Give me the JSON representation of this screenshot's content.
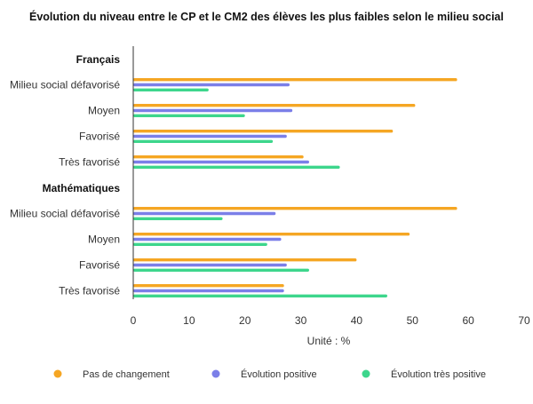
{
  "chart_data": {
    "type": "bar",
    "orientation": "horizontal",
    "title": "Évolution du niveau entre le CP et le CM2 des élèves les plus faibles selon le milieu social",
    "xlabel": "Unité : %",
    "xlim": [
      0,
      70
    ],
    "xticks": [
      "0",
      "10",
      "20",
      "30",
      "40",
      "50",
      "60",
      "70"
    ],
    "grid": false,
    "legend_position": "bottom",
    "series": [
      {
        "name": "Pas de changement",
        "color": "#F5A623"
      },
      {
        "name": "Évolution positive",
        "color": "#7B7FE8"
      },
      {
        "name": "Évolution très positive",
        "color": "#3DD68C"
      }
    ],
    "groups": [
      {
        "name": "Français",
        "categories": [
          {
            "label": "Milieu social défavorisé",
            "values": [
              58,
              28,
              13.5
            ]
          },
          {
            "label": "Moyen",
            "values": [
              50.5,
              28.5,
              20
            ]
          },
          {
            "label": "Favorisé",
            "values": [
              46.5,
              27.5,
              25
            ]
          },
          {
            "label": "Très favorisé",
            "values": [
              30.5,
              31.5,
              37
            ]
          }
        ]
      },
      {
        "name": "Mathématiques",
        "categories": [
          {
            "label": "Milieu social défavorisé",
            "values": [
              58,
              25.5,
              16
            ]
          },
          {
            "label": "Moyen",
            "values": [
              49.5,
              26.5,
              24
            ]
          },
          {
            "label": "Favorisé",
            "values": [
              40,
              27.5,
              31.5
            ]
          },
          {
            "label": "Très favorisé",
            "values": [
              27,
              27,
              45.5
            ]
          }
        ]
      }
    ]
  }
}
